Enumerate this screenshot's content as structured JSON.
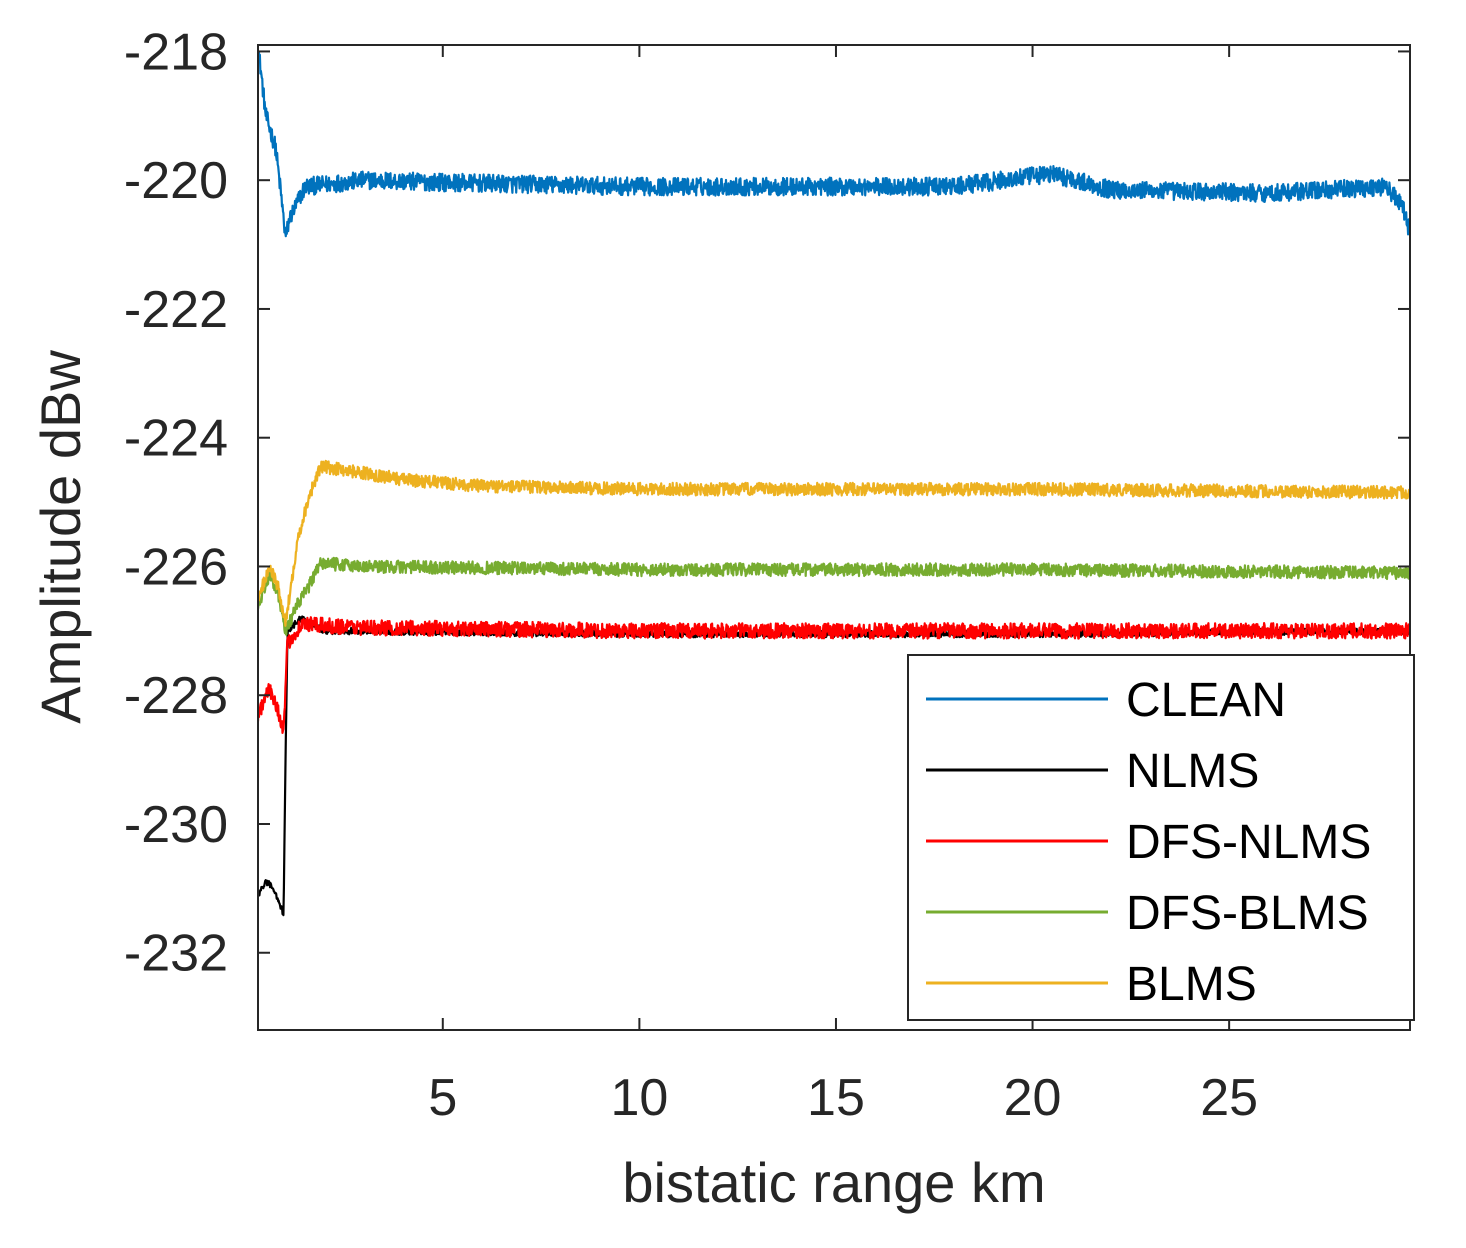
{
  "chart_data": {
    "type": "line",
    "title": "",
    "xlabel": "bistatic range km",
    "ylabel": "Amplitude dBw",
    "xlim": [
      0.3,
      29.6
    ],
    "ylim": [
      -233.2,
      -217.9
    ],
    "xticks": [
      5,
      10,
      15,
      20,
      25
    ],
    "yticks": [
      -218,
      -220,
      -222,
      -224,
      -226,
      -228,
      -230,
      -232
    ],
    "grid": false,
    "legend_position": "bottom-right",
    "series": [
      {
        "name": "CLEAN",
        "color": "#0072BD",
        "points": [
          [
            0.3,
            -217.9
          ],
          [
            0.5,
            -219.0
          ],
          [
            0.75,
            -219.5
          ],
          [
            0.9,
            -220.3
          ],
          [
            1.0,
            -220.9
          ],
          [
            1.1,
            -220.6
          ],
          [
            1.5,
            -220.1
          ],
          [
            3,
            -220.0
          ],
          [
            6,
            -220.05
          ],
          [
            10,
            -220.1
          ],
          [
            15,
            -220.1
          ],
          [
            18,
            -220.1
          ],
          [
            20.5,
            -219.9
          ],
          [
            22,
            -220.15
          ],
          [
            26,
            -220.2
          ],
          [
            29,
            -220.1
          ],
          [
            29.4,
            -220.4
          ],
          [
            29.6,
            -220.8
          ]
        ]
      },
      {
        "name": "NLMS",
        "color": "#000000",
        "points": [
          [
            0.3,
            -231.1
          ],
          [
            0.5,
            -230.9
          ],
          [
            0.7,
            -231.0
          ],
          [
            0.95,
            -231.4
          ],
          [
            1.0,
            -229.0
          ],
          [
            1.05,
            -227.0
          ],
          [
            1.4,
            -226.8
          ],
          [
            2,
            -227.0
          ],
          [
            10,
            -227.05
          ],
          [
            20,
            -227.05
          ],
          [
            29.6,
            -227.0
          ]
        ]
      },
      {
        "name": "DFS-NLMS",
        "color": "#FF0000",
        "points": [
          [
            0.3,
            -228.3
          ],
          [
            0.6,
            -227.9
          ],
          [
            0.8,
            -228.2
          ],
          [
            0.95,
            -228.6
          ],
          [
            1.05,
            -227.2
          ],
          [
            1.4,
            -226.9
          ],
          [
            3,
            -226.95
          ],
          [
            10,
            -227.0
          ],
          [
            20,
            -227.0
          ],
          [
            29.6,
            -227.0
          ]
        ]
      },
      {
        "name": "DFS-BLMS",
        "color": "#77AC30",
        "points": [
          [
            0.3,
            -226.6
          ],
          [
            0.6,
            -226.1
          ],
          [
            0.8,
            -226.4
          ],
          [
            1.0,
            -227.0
          ],
          [
            1.3,
            -226.6
          ],
          [
            1.6,
            -226.3
          ],
          [
            1.9,
            -225.95
          ],
          [
            3,
            -226.0
          ],
          [
            10,
            -226.05
          ],
          [
            20,
            -226.05
          ],
          [
            29.6,
            -226.1
          ]
        ]
      },
      {
        "name": "BLMS",
        "color": "#EDB120",
        "points": [
          [
            0.3,
            -226.5
          ],
          [
            0.6,
            -226.0
          ],
          [
            0.8,
            -226.3
          ],
          [
            1.0,
            -226.9
          ],
          [
            1.3,
            -225.6
          ],
          [
            1.6,
            -224.9
          ],
          [
            1.9,
            -224.45
          ],
          [
            2.5,
            -224.5
          ],
          [
            4,
            -224.65
          ],
          [
            6,
            -224.75
          ],
          [
            10,
            -224.8
          ],
          [
            20,
            -224.8
          ],
          [
            29.6,
            -224.85
          ]
        ]
      }
    ]
  }
}
